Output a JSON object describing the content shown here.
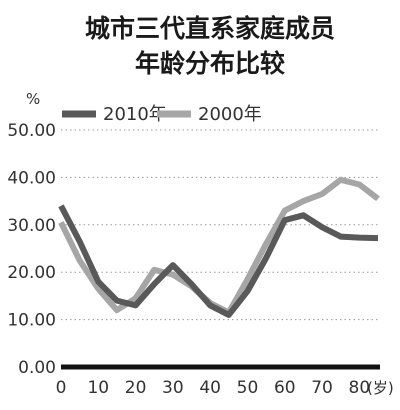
{
  "chart_data": {
    "type": "line",
    "title_lines": [
      "城市三代直系家庭成员",
      "年龄分布比较"
    ],
    "ylabel": "%",
    "xunit": "(岁)",
    "ylim": [
      0,
      50
    ],
    "xlim": [
      0,
      85
    ],
    "yticks": [
      "0.00",
      "10.00",
      "20.00",
      "30.00",
      "40.00",
      "50.00"
    ],
    "xticks": [
      "0",
      "10",
      "20",
      "30",
      "40",
      "50",
      "60",
      "70",
      "80"
    ],
    "grid": "horizontal-dotted",
    "legend": "top",
    "series": [
      {
        "name": "2010年",
        "color": "#595959",
        "x": [
          0,
          5,
          10,
          15,
          20,
          25,
          30,
          35,
          40,
          45,
          50,
          55,
          60,
          65,
          70,
          75,
          80,
          85
        ],
        "y": [
          34.0,
          26.5,
          18.0,
          14.0,
          13.0,
          17.5,
          21.5,
          17.5,
          13.0,
          11.0,
          16.0,
          23.0,
          31.0,
          32.0,
          29.5,
          27.5,
          27.3,
          27.2
        ]
      },
      {
        "name": "2000年",
        "color": "#a6a6a6",
        "x": [
          0,
          5,
          10,
          15,
          20,
          25,
          30,
          35,
          40,
          45,
          50,
          55,
          60,
          65,
          70,
          75,
          80,
          85
        ],
        "y": [
          30.5,
          22.5,
          16.5,
          12.0,
          14.5,
          20.5,
          19.5,
          17.0,
          13.5,
          11.5,
          18.5,
          26.0,
          33.0,
          35.0,
          36.5,
          39.5,
          38.5,
          35.5
        ]
      }
    ]
  }
}
